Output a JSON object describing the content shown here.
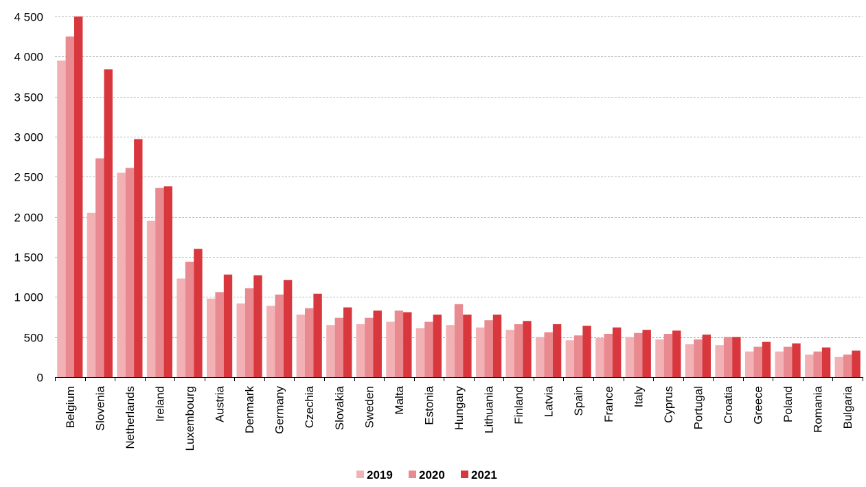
{
  "chart_data": {
    "type": "bar",
    "categories": [
      "Belgium",
      "Slovenia",
      "Netherlands",
      "Ireland",
      "Luxembourg",
      "Austria",
      "Denmark",
      "Germany",
      "Czechia",
      "Slovakia",
      "Sweden",
      "Malta",
      "Estonia",
      "Hungary",
      "Lithuania",
      "Finland",
      "Latvia",
      "Spain",
      "France",
      "Italy",
      "Cyprus",
      "Portugal",
      "Croatia",
      "Greece",
      "Poland",
      "Romania",
      "Bulgaria"
    ],
    "series": [
      {
        "name": "2019",
        "color": "#f2b1b4",
        "values": [
          3950,
          2050,
          2550,
          1950,
          1230,
          980,
          920,
          890,
          780,
          650,
          660,
          690,
          610,
          650,
          620,
          590,
          500,
          460,
          490,
          500,
          470,
          410,
          400,
          320,
          320,
          280,
          250
        ]
      },
      {
        "name": "2020",
        "color": "#e88a8f",
        "values": [
          4250,
          2730,
          2610,
          2360,
          1440,
          1060,
          1110,
          1030,
          860,
          740,
          740,
          830,
          690,
          910,
          710,
          660,
          560,
          520,
          540,
          550,
          540,
          470,
          500,
          380,
          380,
          320,
          280
        ]
      },
      {
        "name": "2021",
        "color": "#d8373d",
        "values": [
          4500,
          3840,
          2970,
          2380,
          1600,
          1280,
          1270,
          1210,
          1040,
          870,
          830,
          810,
          780,
          780,
          780,
          700,
          660,
          640,
          620,
          590,
          580,
          530,
          500,
          440,
          420,
          370,
          330
        ]
      }
    ],
    "y_ticks": [
      "0",
      "500",
      "1 000",
      "1 500",
      "2 000",
      "2 500",
      "3 000",
      "3 500",
      "4 000",
      "4 500"
    ],
    "y_tick_values": [
      0,
      500,
      1000,
      1500,
      2000,
      2500,
      3000,
      3500,
      4000,
      4500
    ],
    "ylim": [
      0,
      4500
    ],
    "grid": true,
    "legend": "bottom-center",
    "title": "",
    "xlabel": "",
    "ylabel": ""
  }
}
